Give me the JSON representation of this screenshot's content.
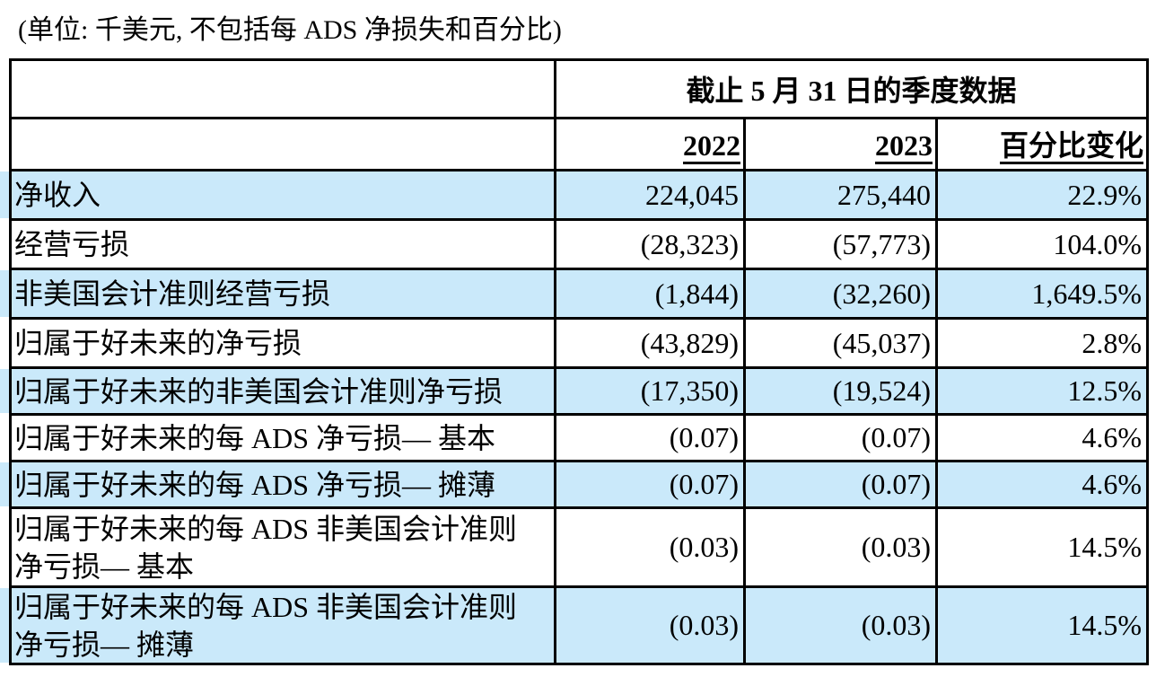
{
  "caption": "(单位: 千美元, 不包括每 ADS 净损失和百分比)",
  "table": {
    "period_header": "截止 5 月 31 日的季度数据",
    "col_2022": "2022",
    "col_2023": "2023",
    "col_change": "百分比变化",
    "rows": [
      {
        "label": "净收入",
        "v2022": "224,045",
        "v2023": "275,440",
        "change": "22.9%",
        "highlight": true
      },
      {
        "label": "经营亏损",
        "v2022": "(28,323)",
        "v2023": "(57,773)",
        "change": "104.0%",
        "highlight": false
      },
      {
        "label": "非美国会计准则经营亏损",
        "v2022": "(1,844)",
        "v2023": "(32,260)",
        "change": "1,649.5%",
        "highlight": true
      },
      {
        "label": "归属于好未来的净亏损",
        "v2022": "(43,829)",
        "v2023": "(45,037)",
        "change": "2.8%",
        "highlight": false
      },
      {
        "label": "归属于好未来的非美国会计准则净亏损",
        "v2022": "(17,350)",
        "v2023": "(19,524)",
        "change": "12.5%",
        "highlight": true
      },
      {
        "label": "归属于好未来的每 ADS 净亏损— 基本",
        "v2022": "(0.07)",
        "v2023": "(0.07)",
        "change": "4.6%",
        "highlight": false
      },
      {
        "label": "归属于好未来的每 ADS 净亏损— 摊薄",
        "v2022": "(0.07)",
        "v2023": "(0.07)",
        "change": "4.6%",
        "highlight": true
      },
      {
        "label": "归属于好未来的每 ADS 非美国会计准则净亏损— 基本",
        "v2022": "(0.03)",
        "v2023": "(0.03)",
        "change": "14.5%",
        "highlight": false
      },
      {
        "label": "归属于好未来的每 ADS 非美国会计准则净亏损— 摊薄",
        "v2022": "(0.03)",
        "v2023": "(0.03)",
        "change": "14.5%",
        "highlight": true
      }
    ]
  },
  "colors": {
    "highlight": "#CAE9FA",
    "border": "#000000",
    "text": "#000000",
    "background": "#FFFFFF"
  }
}
